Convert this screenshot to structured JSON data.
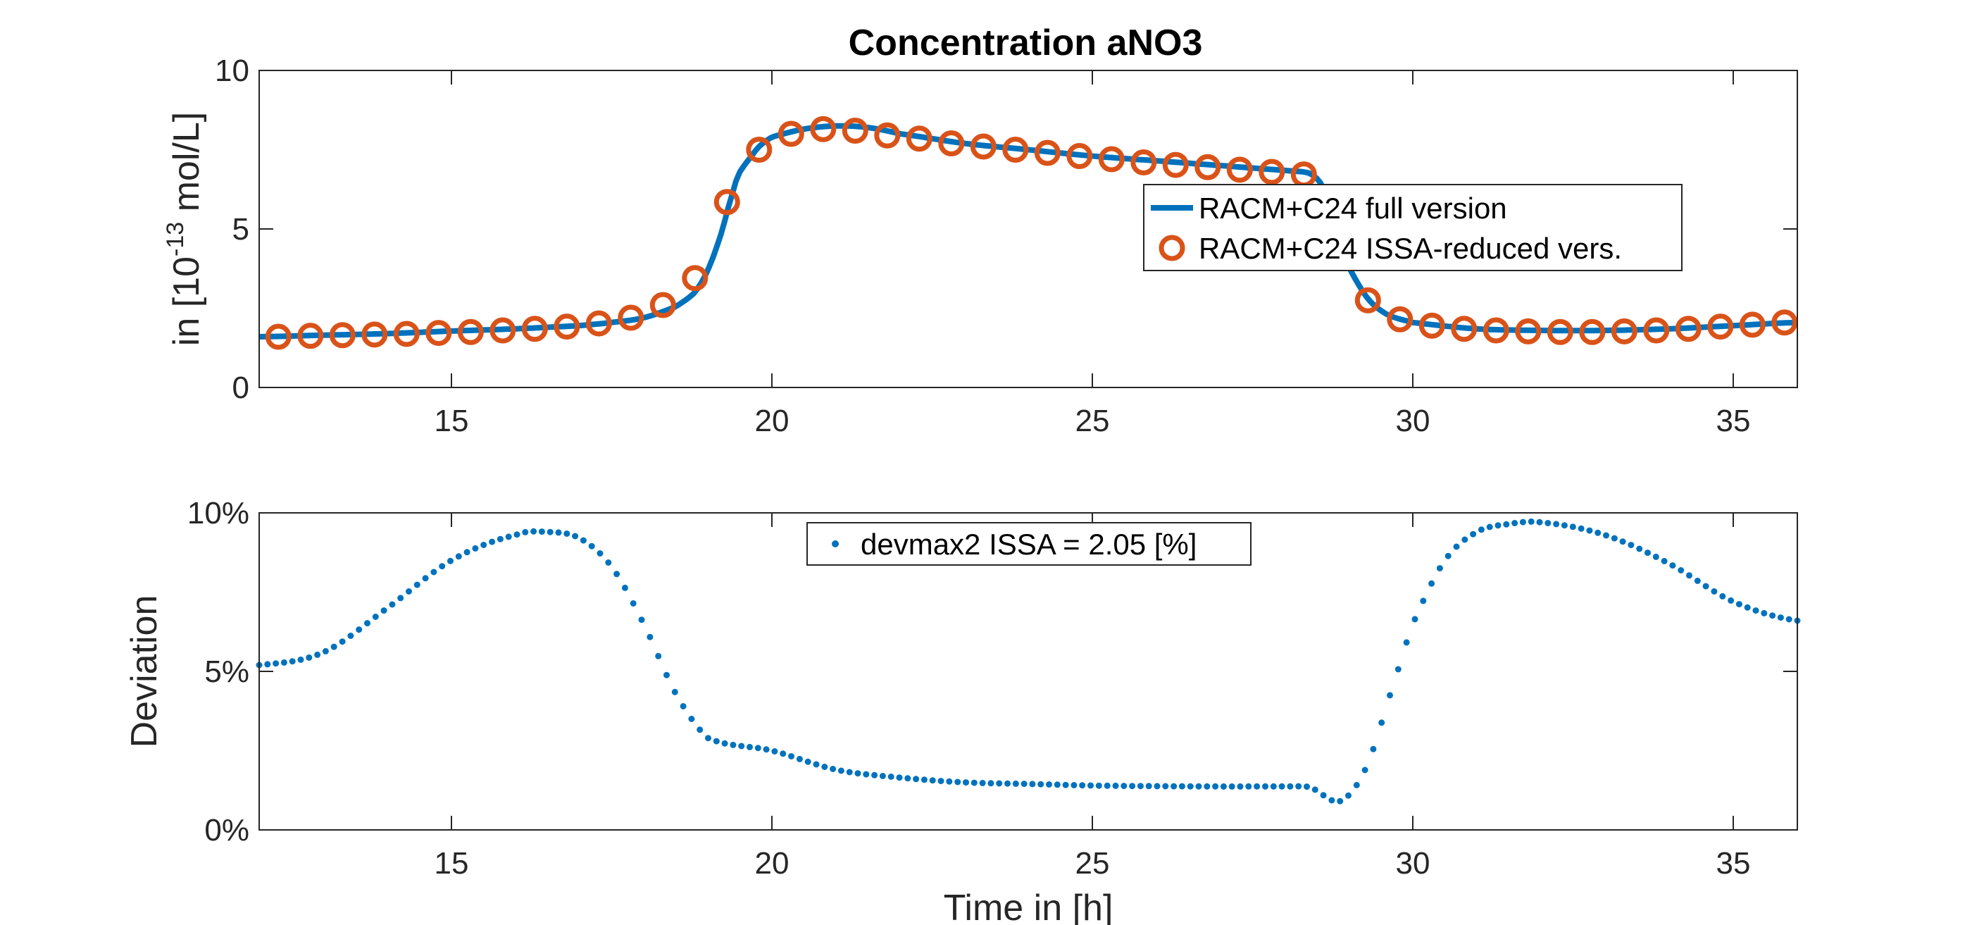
{
  "chart_data": [
    {
      "type": "line",
      "title": "Concentration aNO3",
      "ylabel_prefix": "in [10",
      "ylabel_exponent": "-13",
      "ylabel_suffix": " mol/L]",
      "xlim": [
        12,
        36
      ],
      "ylim": [
        0,
        10
      ],
      "xticks": [
        15,
        20,
        25,
        30,
        35
      ],
      "yticks": [
        0,
        5,
        10
      ],
      "grid": false,
      "legend_position": "center-right",
      "colors": {
        "full": "#0072BD",
        "reduced": "#D95319"
      },
      "series": [
        {
          "name": "RACM+C24 full version",
          "style": "line",
          "x": [
            12,
            13,
            14,
            15,
            16,
            17,
            17.5,
            18,
            18.5,
            18.8,
            19.0,
            19.2,
            19.4,
            19.5,
            19.6,
            19.8,
            20.0,
            20.5,
            21.0,
            21.5,
            22,
            23,
            24,
            25,
            26,
            27,
            28,
            28.4,
            28.6,
            28.8,
            29.0,
            29.3,
            29.6,
            30,
            31,
            32,
            33,
            34,
            35,
            36
          ],
          "y": [
            1.6,
            1.65,
            1.7,
            1.78,
            1.85,
            1.95,
            2.05,
            2.2,
            2.55,
            3.0,
            3.7,
            4.8,
            6.2,
            6.8,
            7.1,
            7.6,
            7.9,
            8.15,
            8.25,
            8.2,
            8.0,
            7.7,
            7.5,
            7.3,
            7.15,
            7.0,
            6.85,
            6.75,
            6.3,
            5.0,
            3.8,
            2.8,
            2.3,
            2.05,
            1.85,
            1.8,
            1.8,
            1.85,
            1.95,
            2.05
          ]
        },
        {
          "name": "RACM+C24 ISSA-reduced vers.",
          "style": "marker-circle",
          "x": [
            12.3,
            12.8,
            13.3,
            13.8,
            14.3,
            14.8,
            15.3,
            15.8,
            16.3,
            16.8,
            17.3,
            17.8,
            18.3,
            18.8,
            19.3,
            19.8,
            20.3,
            20.8,
            21.3,
            21.8,
            22.3,
            22.8,
            23.3,
            23.8,
            24.3,
            24.8,
            25.3,
            25.8,
            26.3,
            26.8,
            27.3,
            27.8,
            28.3,
            29.3,
            29.8,
            30.3,
            30.8,
            31.3,
            31.8,
            32.3,
            32.8,
            33.3,
            33.8,
            34.3,
            34.8,
            35.3,
            35.8
          ],
          "y": [
            1.6,
            1.63,
            1.65,
            1.67,
            1.69,
            1.72,
            1.75,
            1.8,
            1.85,
            1.92,
            2.02,
            2.2,
            2.6,
            3.45,
            5.85,
            7.5,
            8.0,
            8.15,
            8.1,
            7.95,
            7.85,
            7.7,
            7.6,
            7.5,
            7.4,
            7.3,
            7.2,
            7.1,
            7.02,
            6.95,
            6.87,
            6.8,
            6.72,
            2.75,
            2.15,
            1.95,
            1.85,
            1.8,
            1.77,
            1.75,
            1.75,
            1.77,
            1.8,
            1.85,
            1.92,
            1.98,
            2.05
          ]
        }
      ]
    },
    {
      "type": "scatter",
      "xlabel": "Time in [h]",
      "ylabel": "Deviation",
      "xlim": [
        12,
        36
      ],
      "ylim": [
        0,
        10
      ],
      "xticks": [
        15,
        20,
        25,
        30,
        35
      ],
      "ytick_values": [
        0,
        5,
        10
      ],
      "ytick_labels": [
        "0%",
        "5%",
        "10%"
      ],
      "grid": false,
      "legend_position": "top-center",
      "color": "#0072BD",
      "series": [
        {
          "name": "devmax2 ISSA = 2.05 [%]",
          "x": [
            12,
            13,
            14,
            15,
            16,
            16.5,
            17,
            17.5,
            18,
            18.5,
            19,
            20,
            21,
            22,
            23,
            24,
            25,
            26,
            27,
            28,
            28.4,
            28.6,
            28.8,
            29.0,
            29.3,
            29.6,
            30,
            30.5,
            31,
            31.5,
            32,
            33,
            34,
            35,
            36
          ],
          "y": [
            5.2,
            5.6,
            7.0,
            8.5,
            9.3,
            9.4,
            9.2,
            8.3,
            6.5,
            4.3,
            2.9,
            2.5,
            1.9,
            1.65,
            1.5,
            1.45,
            1.4,
            1.38,
            1.37,
            1.37,
            1.35,
            1.1,
            0.9,
            1.1,
            2.1,
            4.0,
            6.5,
            8.5,
            9.4,
            9.65,
            9.7,
            9.3,
            8.4,
            7.2,
            6.6
          ]
        }
      ]
    }
  ]
}
